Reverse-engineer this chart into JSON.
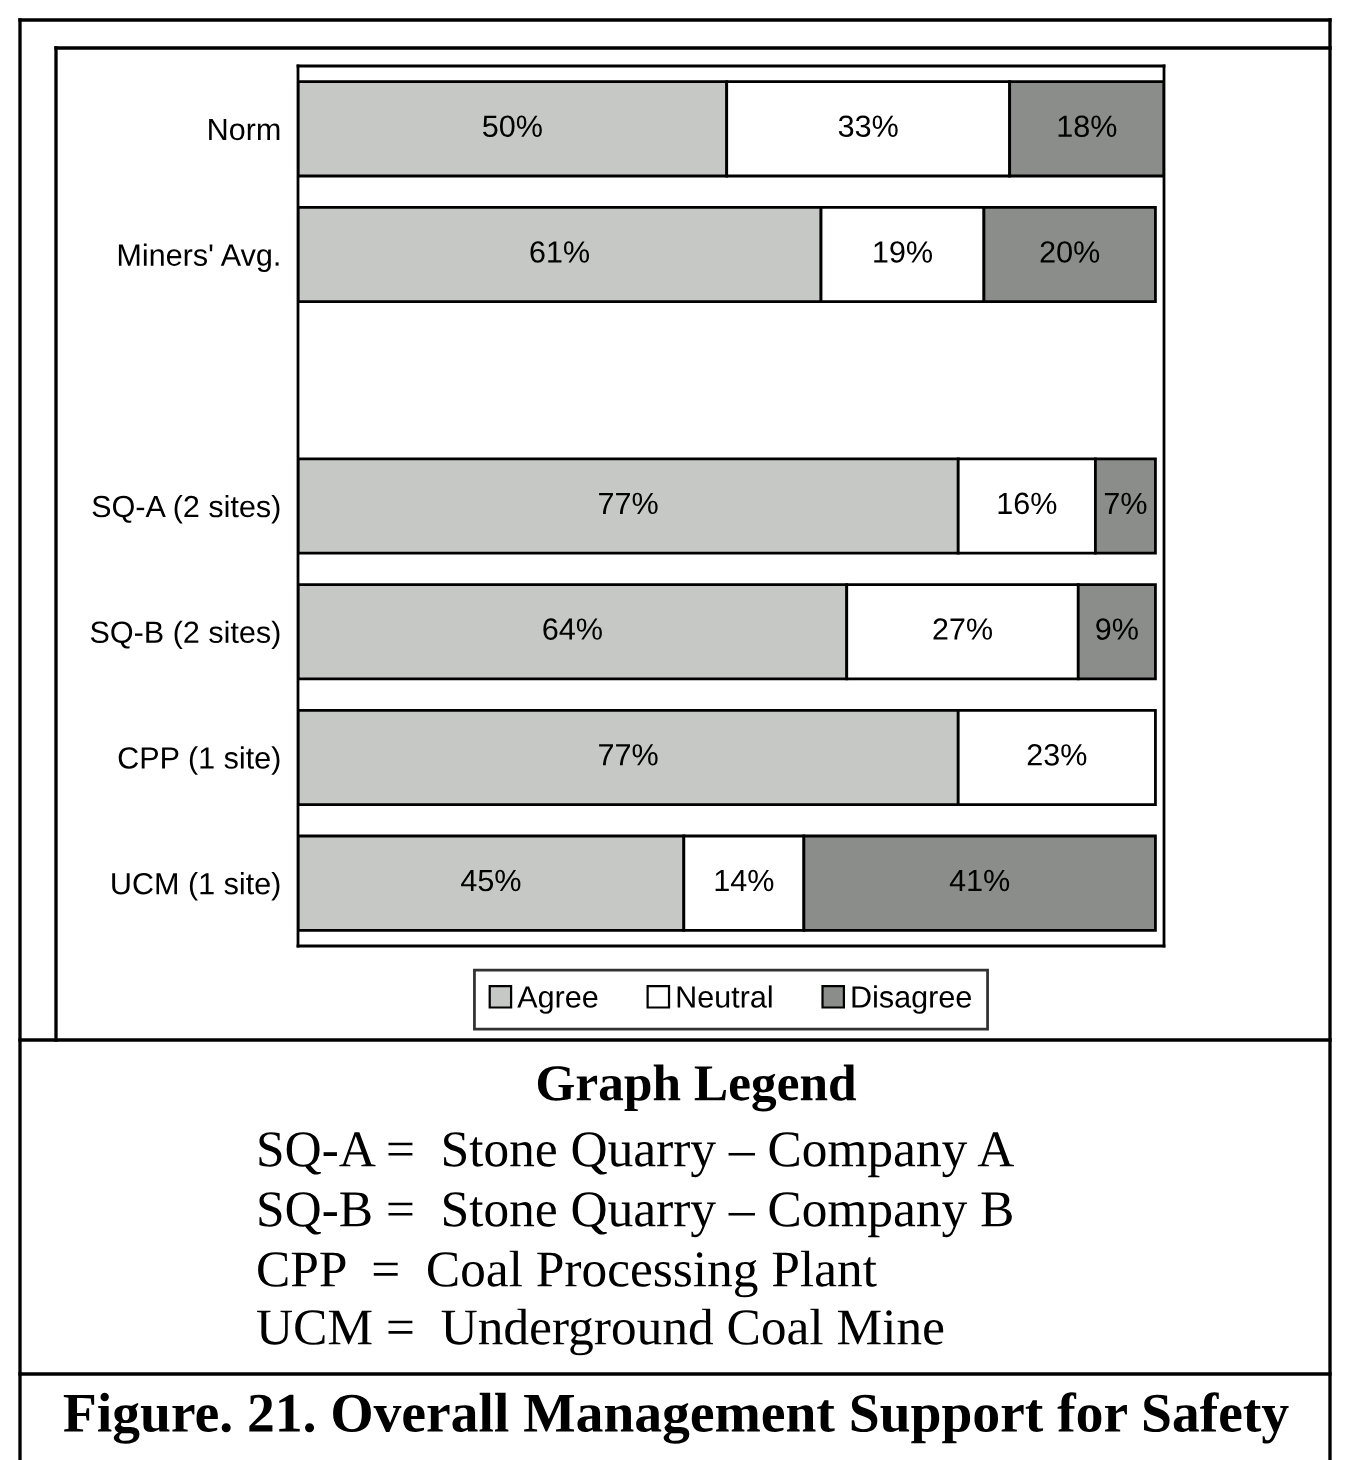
{
  "chart_data": {
    "type": "bar",
    "orientation": "horizontal",
    "stacked": true,
    "title": "Figure. 21. Overall Management Support for Safety",
    "categories": [
      "Norm",
      "Miners' Avg.",
      null,
      "SQ-A (2 sites)",
      "SQ-B (2 sites)",
      "CPP (1 site)",
      "UCM (1 site)"
    ],
    "series": [
      {
        "name": "Agree",
        "color": "#c6c8c6",
        "values": [
          50,
          61,
          null,
          77,
          64,
          77,
          45
        ],
        "value_labels": [
          "50%",
          "61%",
          null,
          "77%",
          "64%",
          "77%",
          "45%"
        ]
      },
      {
        "name": "Neutral",
        "color": "#ffffff",
        "values": [
          33,
          19,
          null,
          16,
          27,
          23,
          14
        ],
        "value_labels": [
          "33%",
          "19%",
          null,
          "16%",
          "27%",
          "23%",
          "14%"
        ]
      },
      {
        "name": "Disagree",
        "color": "#8a8d8a",
        "values": [
          18,
          20,
          null,
          7,
          9,
          null,
          41
        ],
        "value_labels": [
          "18%",
          "20%",
          null,
          "7%",
          "9%",
          null,
          "41%"
        ]
      }
    ],
    "legend": "bottom",
    "tick_labels": "y",
    "annotations": [
      "Graph Legend",
      "SQ-A =  Stone Quarry – Company A",
      "SQ-B =  Stone Quarry – Company B",
      "CPP  =  Coal Processing Plant",
      "UCM =  Underground Coal Mine"
    ]
  }
}
